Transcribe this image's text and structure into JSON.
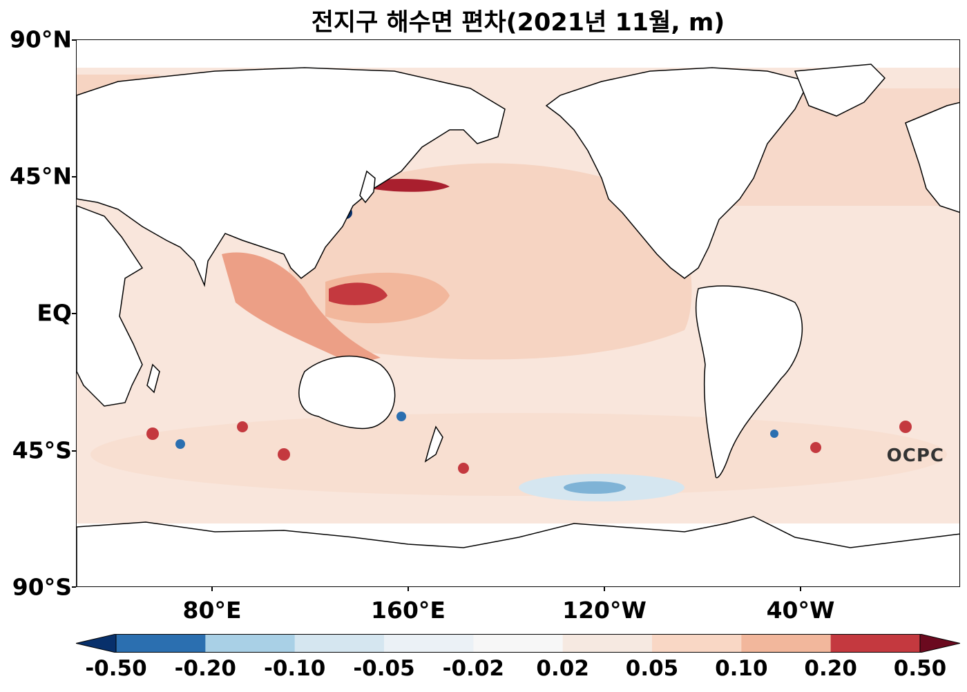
{
  "title": "전지구 해수면 편차(2021년 11월, m)",
  "lat_labels": [
    "90°N",
    "45°N",
    "EQ",
    "45°S",
    "90°S"
  ],
  "lon_labels": [
    "80°E",
    "160°E",
    "120°W",
    "40°W"
  ],
  "colorbar": {
    "labels": [
      "-0.50",
      "-0.20",
      "-0.10",
      "-0.05",
      "-0.02",
      "0.02",
      "0.05",
      "0.10",
      "0.20",
      "0.50"
    ],
    "colors": [
      "#08306b",
      "#2b6fb0",
      "#a9d0e6",
      "#d5e6f0",
      "#ebf1f6",
      "#f7f7f7",
      "#f6e9e1",
      "#f9d7c5",
      "#f2b79c",
      "#c4393f",
      "#6b0a1f"
    ],
    "extend": "both"
  },
  "logo": "OCPC",
  "colors": {
    "land": "#ffffff",
    "coast": "#000000"
  }
}
